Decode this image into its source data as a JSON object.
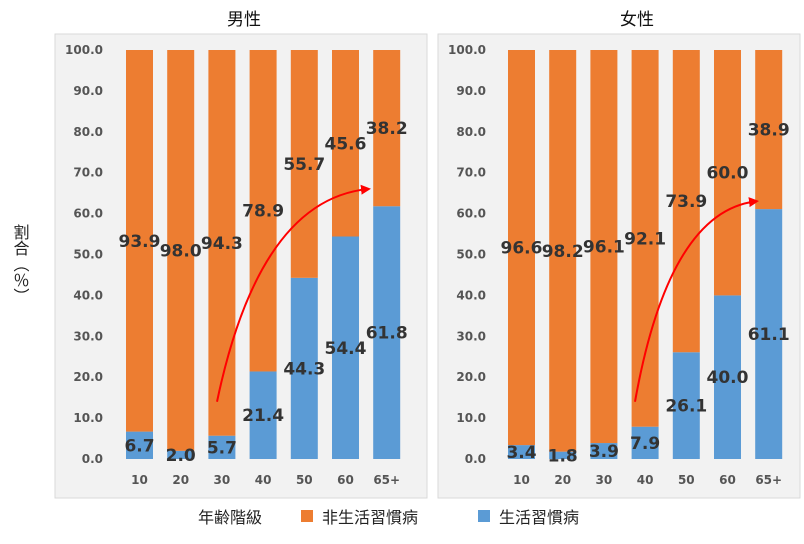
{
  "chart_data": {
    "type": "bar",
    "stacked": true,
    "y_axis_label": "割合（％）",
    "x_axis_title": "年齢階級",
    "ylim": [
      0,
      100
    ],
    "y_ticks": [
      "0.0",
      "10.0",
      "20.0",
      "30.0",
      "40.0",
      "50.0",
      "60.0",
      "70.0",
      "80.0",
      "90.0",
      "100.0"
    ],
    "categories": [
      "10",
      "20",
      "30",
      "40",
      "50",
      "60",
      "65+"
    ],
    "legend": [
      {
        "name": "非生活習慣病",
        "color": "#ED7D31"
      },
      {
        "name": "生活習慣病",
        "color": "#5B9BD5"
      }
    ],
    "panels": [
      {
        "title": "男性",
        "series": [
          {
            "name": "生活習慣病",
            "color": "#5B9BD5",
            "values": [
              6.7,
              2.0,
              5.7,
              21.4,
              44.3,
              54.4,
              61.8
            ],
            "labels": [
              "6.7",
              "2.0",
              "5.7",
              "21.4",
              "44.3",
              "54.4",
              "61.8"
            ]
          },
          {
            "name": "非生活習慣病",
            "color": "#ED7D31",
            "values": [
              93.9,
              98.0,
              94.3,
              78.9,
              55.7,
              45.6,
              38.2
            ],
            "labels": [
              "93.9",
              "98.0",
              "94.3",
              "78.9",
              "55.7",
              "45.6",
              "38.2"
            ]
          }
        ]
      },
      {
        "title": "女性",
        "series": [
          {
            "name": "生活習慣病",
            "color": "#5B9BD5",
            "values": [
              3.4,
              1.8,
              3.9,
              7.9,
              26.1,
              40.0,
              61.1
            ],
            "labels": [
              "3.4",
              "1.8",
              "3.9",
              "7.9",
              "26.1",
              "40.0",
              "61.1"
            ]
          },
          {
            "name": "非生活習慣病",
            "color": "#ED7D31",
            "values": [
              96.6,
              98.2,
              96.1,
              92.1,
              73.9,
              60.0,
              38.9
            ],
            "labels": [
              "96.6",
              "98.2",
              "96.1",
              "92.1",
              "73.9",
              "60.0",
              "38.9"
            ]
          }
        ]
      }
    ],
    "annotations": [
      {
        "type": "trend-arrow",
        "color": "#FF0000"
      }
    ]
  }
}
